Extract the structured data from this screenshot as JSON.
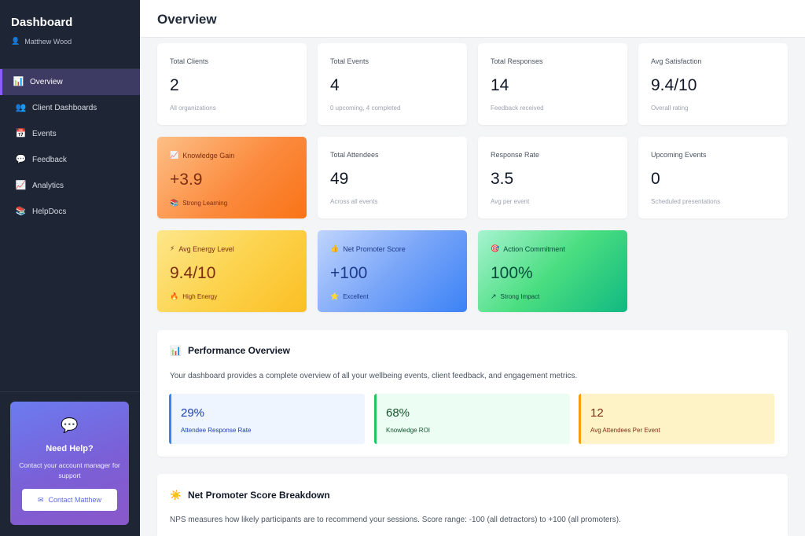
{
  "sidebar": {
    "title": "Dashboard",
    "user": "Matthew Wood",
    "items": [
      {
        "label": "Overview",
        "icon": "bar-chart-icon"
      },
      {
        "label": "Client Dashboards",
        "icon": "users-icon"
      },
      {
        "label": "Events",
        "icon": "calendar-icon"
      },
      {
        "label": "Feedback",
        "icon": "speech-bubble-icon"
      },
      {
        "label": "Analytics",
        "icon": "line-chart-icon"
      },
      {
        "label": "HelpDocs",
        "icon": "books-icon"
      }
    ],
    "help": {
      "title": "Need Help?",
      "text": "Contact your account manager for support",
      "button": "Contact Matthew"
    }
  },
  "header": {
    "title": "Overview"
  },
  "stats": [
    {
      "label": "Total Clients",
      "value": "2",
      "sub": "All organizations"
    },
    {
      "label": "Total Events",
      "value": "4",
      "sub": "0 upcoming, 4 completed"
    },
    {
      "label": "Total Responses",
      "value": "14",
      "sub": "Feedback received"
    },
    {
      "label": "Avg Satisfaction",
      "value": "9.4/10",
      "sub": "Overall rating"
    },
    {
      "label": "Knowledge Gain",
      "value": "+3.9",
      "sub": "Strong Learning"
    },
    {
      "label": "Total Attendees",
      "value": "49",
      "sub": "Across all events"
    },
    {
      "label": "Response Rate",
      "value": "3.5",
      "sub": "Avg per event"
    },
    {
      "label": "Upcoming Events",
      "value": "0",
      "sub": "Scheduled presentations"
    },
    {
      "label": "Avg Energy Level",
      "value": "9.4/10",
      "sub": "High Energy"
    },
    {
      "label": "Net Promoter Score",
      "value": "+100",
      "sub": "Excellent"
    },
    {
      "label": "Action Commitment",
      "value": "100%",
      "sub": "Strong Impact"
    }
  ],
  "performance": {
    "title": "Performance Overview",
    "description": "Your dashboard provides a complete overview of all your wellbeing events, client feedback, and engagement metrics.",
    "metrics": [
      {
        "value": "29%",
        "label": "Attendee Response Rate"
      },
      {
        "value": "68%",
        "label": "Knowledge ROI"
      },
      {
        "value": "12",
        "label": "Avg Attendees Per Event"
      }
    ]
  },
  "nps": {
    "title": "Net Promoter Score Breakdown",
    "description": "NPS measures how likely participants are to recommend your sessions. Score range: -100 (all detractors) to +100 (all promoters)."
  }
}
